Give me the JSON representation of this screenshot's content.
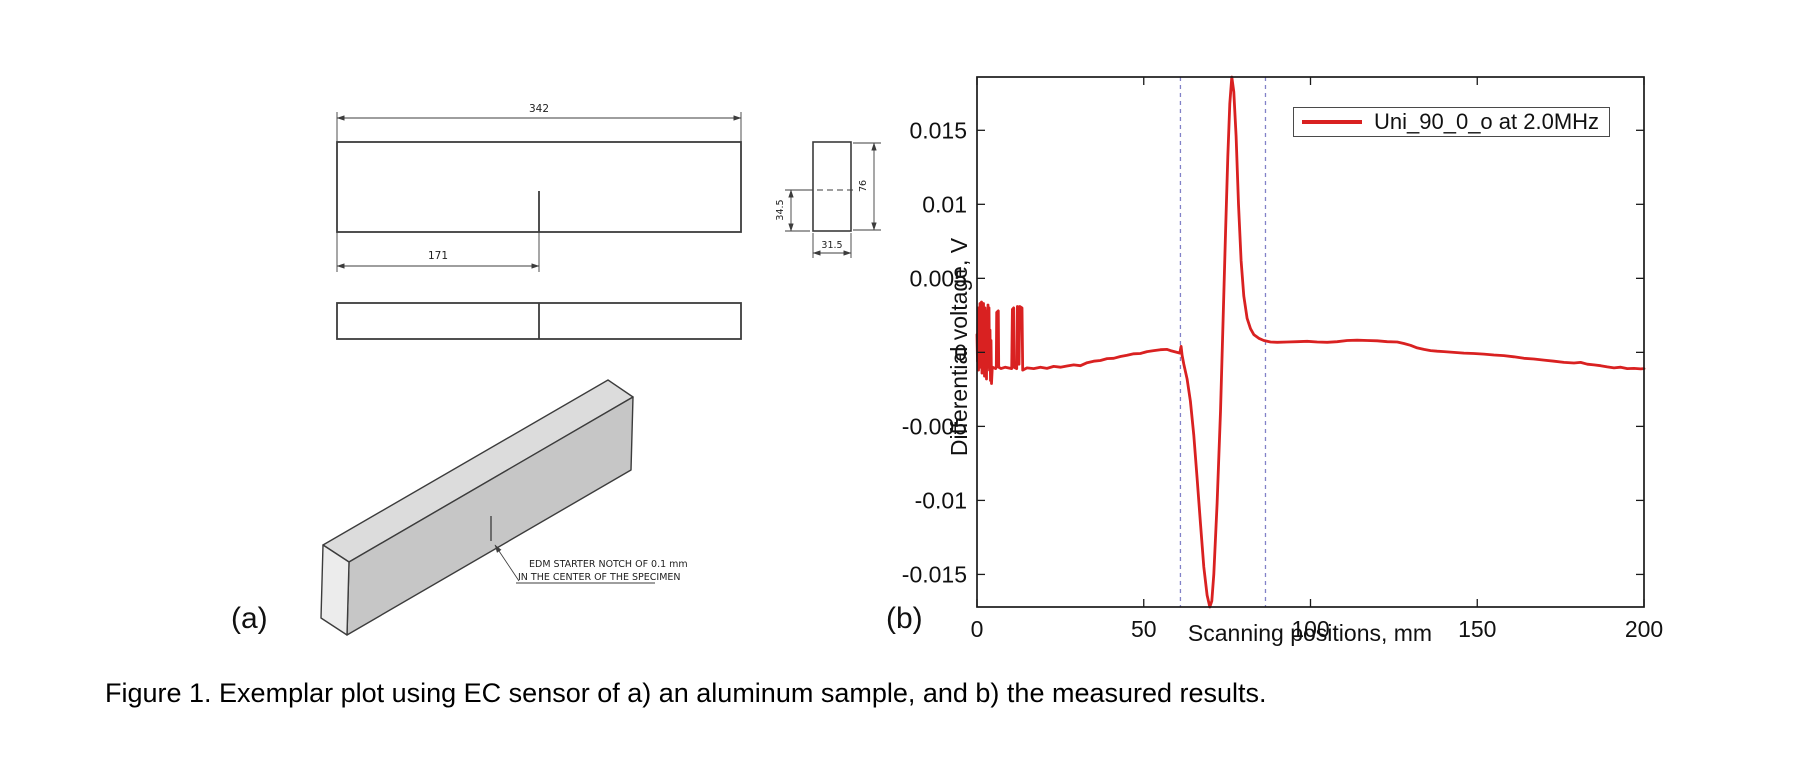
{
  "figure": {
    "panel_a_label": "(a)",
    "panel_b_label": "(b)",
    "caption": "Figure 1. Exemplar plot using EC sensor of a) an aluminum sample, and b) the measured results."
  },
  "drawing": {
    "dim_length": "342",
    "dim_half_length": "171",
    "dim_notch_height": "34.5",
    "dim_width": "31.5",
    "dim_height": "76",
    "note_line1": "EDM STARTER NOTCH OF 0.1 mm",
    "note_line2": "IN THE CENTER OF THE SPECIMEN"
  },
  "chart_data": {
    "type": "line",
    "title": "",
    "xlabel": "Scanning positions, mm",
    "ylabel": "Differential voltage, V",
    "xlim": [
      0,
      200
    ],
    "ylim": [
      -0.0172,
      0.0186
    ],
    "x_ticks": [
      0,
      50,
      100,
      150,
      200
    ],
    "y_ticks": [
      -0.015,
      -0.01,
      -0.005,
      0,
      0.005,
      0.01,
      0.015
    ],
    "grid": false,
    "legend": {
      "label": "Uni_90_0_o at 2.0MHz",
      "position": "top-right"
    },
    "line_color": "#d92121",
    "marker_lines": {
      "x_values": [
        61,
        86.5
      ],
      "style": "dashed",
      "color": "#8282c8"
    },
    "series": [
      {
        "name": "Uni_90_0_o at 2.0MHz",
        "points": [
          [
            0,
            0.0012
          ],
          [
            0.15,
            -0.0006
          ],
          [
            0.3,
            0.003
          ],
          [
            0.45,
            -0.0012
          ],
          [
            0.6,
            0.0026
          ],
          [
            0.75,
            0.0006
          ],
          [
            0.9,
            0.0033
          ],
          [
            1.05,
            -0.001
          ],
          [
            1.2,
            0.0022
          ],
          [
            1.35,
            0.0034
          ],
          [
            1.5,
            -0.0014
          ],
          [
            1.65,
            0.0028
          ],
          [
            1.8,
            -0.0006
          ],
          [
            1.95,
            0.0033
          ],
          [
            2.1,
            0.001
          ],
          [
            2.25,
            -0.0016
          ],
          [
            2.4,
            0.003
          ],
          [
            2.55,
            -0.0008
          ],
          [
            2.7,
            0.0025
          ],
          [
            2.85,
            -0.0018
          ],
          [
            3,
            0.0028
          ],
          [
            3.15,
            -0.001
          ],
          [
            3.3,
            0.0032
          ],
          [
            3.45,
            0.0008
          ],
          [
            3.6,
            0.003
          ],
          [
            3.75,
            -0.0012
          ],
          [
            3.9,
            0.0015
          ],
          [
            4.05,
            -0.0019
          ],
          [
            4.2,
            0.0008
          ],
          [
            4.35,
            -0.0021
          ],
          [
            4.6,
            -0.001
          ],
          [
            5.6,
            -0.0011
          ],
          [
            5.8,
            -0.001
          ],
          [
            5.9,
            0.0027
          ],
          [
            6.4,
            0.0028
          ],
          [
            6.5,
            -0.001
          ],
          [
            7.2,
            -0.0011
          ],
          [
            8.5,
            -0.001
          ],
          [
            10.4,
            -0.0011
          ],
          [
            10.6,
            0.0029
          ],
          [
            11,
            0.003
          ],
          [
            11.1,
            -0.001
          ],
          [
            11.9,
            -0.0011
          ],
          [
            12.1,
            0.0031
          ],
          [
            12.4,
            0.003
          ],
          [
            12.6,
            -0.0008
          ],
          [
            12.8,
            0.0031
          ],
          [
            13.5,
            0.003
          ],
          [
            13.7,
            -0.0012
          ],
          [
            15,
            -0.00105
          ],
          [
            17,
            -0.0011
          ],
          [
            19,
            -0.001
          ],
          [
            21,
            -0.00108
          ],
          [
            23,
            -0.00095
          ],
          [
            25,
            -0.001
          ],
          [
            27,
            -0.00092
          ],
          [
            29,
            -0.00085
          ],
          [
            31,
            -0.0009
          ],
          [
            33,
            -0.0007
          ],
          [
            35,
            -0.0006
          ],
          [
            37,
            -0.00055
          ],
          [
            39,
            -0.00042
          ],
          [
            41,
            -0.0004
          ],
          [
            43,
            -0.00028
          ],
          [
            45,
            -0.0002
          ],
          [
            47,
            -0.0001
          ],
          [
            49,
            -8e-05
          ],
          [
            51,
            5e-05
          ],
          [
            53,
            0.00012
          ],
          [
            55,
            0.00018
          ],
          [
            57,
            0.0002
          ],
          [
            58,
            0.00012
          ],
          [
            59,
            6e-05
          ],
          [
            60,
            0
          ],
          [
            60.8,
            -5e-05
          ],
          [
            61.2,
            0.0004
          ],
          [
            61.5,
            -0.0002
          ],
          [
            62,
            -0.0008
          ],
          [
            63,
            -0.0018
          ],
          [
            64,
            -0.0033
          ],
          [
            65,
            -0.0056
          ],
          [
            66,
            -0.0085
          ],
          [
            67,
            -0.0115
          ],
          [
            68,
            -0.0145
          ],
          [
            69,
            -0.0164
          ],
          [
            69.8,
            -0.0172
          ],
          [
            70.4,
            -0.0168
          ],
          [
            71,
            -0.015
          ],
          [
            72,
            -0.0102
          ],
          [
            73,
            -0.004
          ],
          [
            73.8,
            0.0022
          ],
          [
            74.5,
            0.008
          ],
          [
            75.2,
            0.0132
          ],
          [
            75.8,
            0.0168
          ],
          [
            76.4,
            0.0186
          ],
          [
            77,
            0.0176
          ],
          [
            77.7,
            0.0146
          ],
          [
            78.4,
            0.01
          ],
          [
            79.2,
            0.0062
          ],
          [
            80,
            0.0038
          ],
          [
            81,
            0.0023
          ],
          [
            82,
            0.0016
          ],
          [
            83,
            0.0012
          ],
          [
            84.5,
            0.00095
          ],
          [
            86,
            0.0008
          ],
          [
            88,
            0.0007
          ],
          [
            90,
            0.00068
          ],
          [
            93,
            0.0007
          ],
          [
            96,
            0.00072
          ],
          [
            99,
            0.00075
          ],
          [
            102,
            0.0007
          ],
          [
            105,
            0.00068
          ],
          [
            108,
            0.00072
          ],
          [
            111,
            0.0008
          ],
          [
            114,
            0.00082
          ],
          [
            117,
            0.0008
          ],
          [
            120,
            0.00078
          ],
          [
            123,
            0.00072
          ],
          [
            126,
            0.0007
          ],
          [
            128,
            0.0006
          ],
          [
            130,
            0.00048
          ],
          [
            132,
            0.0003
          ],
          [
            134,
            0.0002
          ],
          [
            136,
            0.00012
          ],
          [
            138,
            8e-05
          ],
          [
            140,
            5e-05
          ],
          [
            143,
            0
          ],
          [
            146,
            -5e-05
          ],
          [
            149,
            -8e-05
          ],
          [
            152,
            -0.00012
          ],
          [
            155,
            -0.00018
          ],
          [
            158,
            -0.00022
          ],
          [
            161,
            -0.0003
          ],
          [
            164,
            -0.0004
          ],
          [
            167,
            -0.00045
          ],
          [
            170,
            -0.00052
          ],
          [
            173,
            -0.0006
          ],
          [
            176,
            -0.00068
          ],
          [
            179,
            -0.00072
          ],
          [
            181,
            -0.00068
          ],
          [
            183,
            -0.0008
          ],
          [
            185,
            -0.00085
          ],
          [
            187,
            -0.0009
          ],
          [
            189,
            -0.00098
          ],
          [
            191,
            -0.00105
          ],
          [
            193,
            -0.001
          ],
          [
            195,
            -0.0011
          ],
          [
            197,
            -0.00108
          ],
          [
            199,
            -0.00112
          ],
          [
            200,
            -0.0011
          ]
        ]
      }
    ]
  },
  "colors": {
    "curve_red": "#d92121",
    "dashed_marker": "#8282c8",
    "drawing_stroke": "#3c3c3c",
    "iso_top_face": "#dcdcdc",
    "iso_front_face": "#c6c6c6",
    "iso_end_face": "#ececec",
    "axis_frame": "#1a1a1a"
  }
}
